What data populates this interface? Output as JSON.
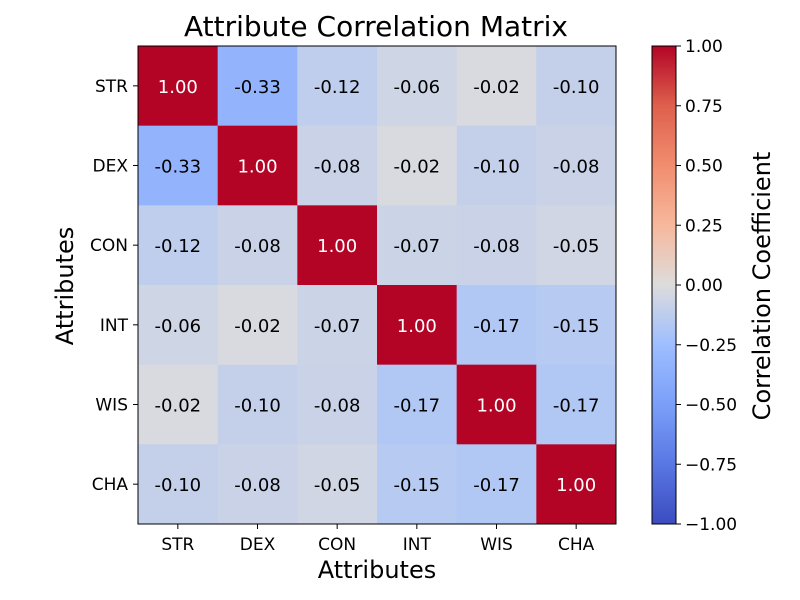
{
  "chart_data": {
    "type": "heatmap",
    "title": "Attribute Correlation Matrix",
    "xlabel": "Attributes",
    "ylabel": "Attributes",
    "x_categories": [
      "STR",
      "DEX",
      "CON",
      "INT",
      "WIS",
      "CHA"
    ],
    "y_categories": [
      "STR",
      "DEX",
      "CON",
      "INT",
      "WIS",
      "CHA"
    ],
    "values": [
      [
        1.0,
        -0.33,
        -0.12,
        -0.06,
        -0.02,
        -0.1
      ],
      [
        -0.33,
        1.0,
        -0.08,
        -0.02,
        -0.1,
        -0.08
      ],
      [
        -0.12,
        -0.08,
        1.0,
        -0.07,
        -0.08,
        -0.05
      ],
      [
        -0.06,
        -0.02,
        -0.07,
        1.0,
        -0.17,
        -0.15
      ],
      [
        -0.02,
        -0.1,
        -0.08,
        -0.17,
        1.0,
        -0.17
      ],
      [
        -0.1,
        -0.08,
        -0.05,
        -0.15,
        -0.17,
        1.0
      ]
    ],
    "value_format": "2 decimals",
    "colormap": "coolwarm",
    "vmin": -1.0,
    "vmax": 1.0,
    "colorbar": {
      "label": "Correlation Coefficient",
      "ticks": [
        -1.0,
        -0.75,
        -0.5,
        -0.25,
        0.0,
        0.25,
        0.5,
        0.75,
        1.0
      ],
      "tick_labels": [
        "−1.00",
        "−0.75",
        "−0.50",
        "−0.25",
        "0.00",
        "0.25",
        "0.50",
        "0.75",
        "1.00"
      ]
    },
    "grid": false
  }
}
